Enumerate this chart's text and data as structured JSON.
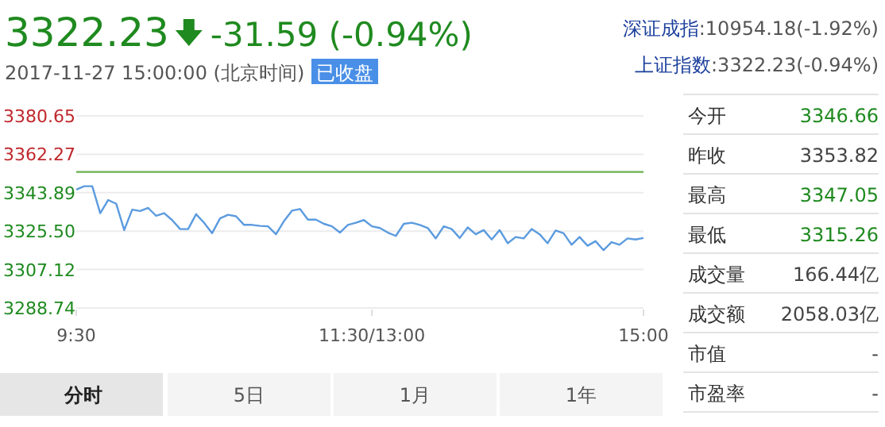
{
  "chart_data": [
    {
      "type": "line",
      "title": "3322.23",
      "subtitle": "-31.59 (-0.94%)",
      "annotations": [
        "2017-11-27 15:00:00  (北京时间)",
        "已收盘",
        "分时",
        "5日",
        "1月",
        "1年"
      ],
      "categories": [
        "9:30",
        null,
        null,
        null,
        null,
        null,
        null,
        null,
        null,
        null,
        null,
        null,
        null,
        null,
        null,
        null,
        null,
        null,
        null,
        null,
        null,
        null,
        null,
        null,
        null,
        null,
        null,
        null,
        null,
        null,
        null,
        null,
        null,
        null,
        null,
        null,
        null,
        "11:30/13:00",
        null,
        null,
        null,
        null,
        null,
        null,
        null,
        null,
        null,
        null,
        null,
        null,
        null,
        null,
        null,
        null,
        null,
        null,
        null,
        null,
        null,
        null,
        null,
        null,
        null,
        null,
        null,
        null,
        null,
        null,
        null,
        null,
        null,
        "15:00"
      ],
      "series": [
        {
          "color": "#5b9bdf",
          "values": [
            3345.4,
            3347.0,
            3347.0,
            3334.1,
            3340.4,
            3338.6,
            3326.0,
            3335.8,
            3335.1,
            3336.6,
            3332.8,
            3334.1,
            3330.8,
            3326.5,
            3326.5,
            3333.6,
            3329.5,
            3324.5,
            3331.6,
            3333.3,
            3332.6,
            3328.5,
            3328.5,
            3328.0,
            3327.8,
            3324.0,
            3330.3,
            3335.3,
            3336.1,
            3331.0,
            3331.0,
            3329.0,
            3327.8,
            3324.8,
            3328.5,
            3329.5,
            3330.8,
            3327.8,
            3327.0,
            3324.8,
            3323.2,
            3329.0,
            3329.5,
            3328.5,
            3327.0,
            3322.0,
            3327.8,
            3326.5,
            3322.2,
            3327.3,
            3324.0,
            3326.0,
            3321.5,
            3326.0,
            3319.7,
            3322.7,
            3322.0,
            3326.5,
            3324.0,
            3319.7,
            3325.8,
            3324.5,
            3319.0,
            3322.7,
            3318.5,
            3320.7,
            3316.4,
            3320.2,
            3319.0,
            3322.0,
            3321.5,
            3322.2
          ]
        }
      ],
      "ylim": [
        3288.74,
        3380.65
      ],
      "yticks": [
        3288.74,
        3307.12,
        {
          "value": 3325.5,
          "label": "3325.50"
        },
        3343.89,
        3362.27,
        3380.65
      ],
      "ref_lines": [
        {
          "axis": "y",
          "value": 3353.82,
          "color": "#6ab04c"
        }
      ],
      "grid": "y"
    },
    {
      "type": "other",
      "annotations": [
        "深证成指:10954.18(-1.92%)",
        "上证指数:3322.23(-0.94%)",
        "今开",
        "3346.66",
        "昨收",
        "3353.82",
        "最高",
        "3347.05",
        "最低",
        "3315.26",
        "成交量",
        "166.44亿",
        "成交额",
        "2058.03亿",
        "市值",
        "-",
        "市盈率",
        "-"
      ]
    }
  ]
}
